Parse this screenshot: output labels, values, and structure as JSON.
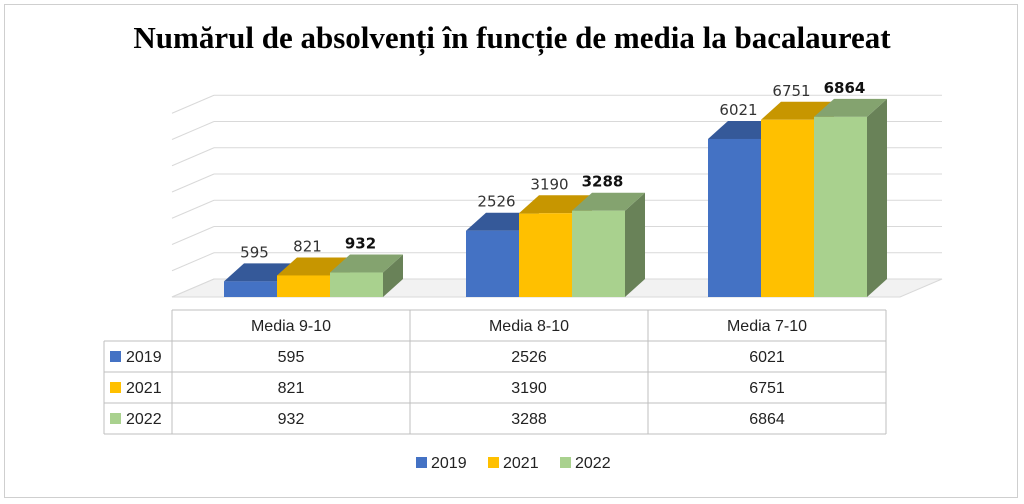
{
  "chart_data": {
    "type": "bar",
    "title": "Numărul de absolvenți în funcție de media la bacalaureat",
    "categories": [
      "Media 9-10",
      "Media 8-10",
      "Media 7-10"
    ],
    "series": [
      {
        "name": "2019",
        "values": [
          595,
          2526,
          6021
        ],
        "color": "#4472C4"
      },
      {
        "name": "2021",
        "values": [
          821,
          3190,
          6751
        ],
        "color": "#FFC000"
      },
      {
        "name": "2022",
        "values": [
          932,
          3288,
          6864
        ],
        "color": "#A9D18E"
      }
    ],
    "ylim": [
      0,
      7000
    ],
    "grid": true,
    "data_table": true,
    "legend_position": "bottom",
    "bold_series": "2022"
  }
}
